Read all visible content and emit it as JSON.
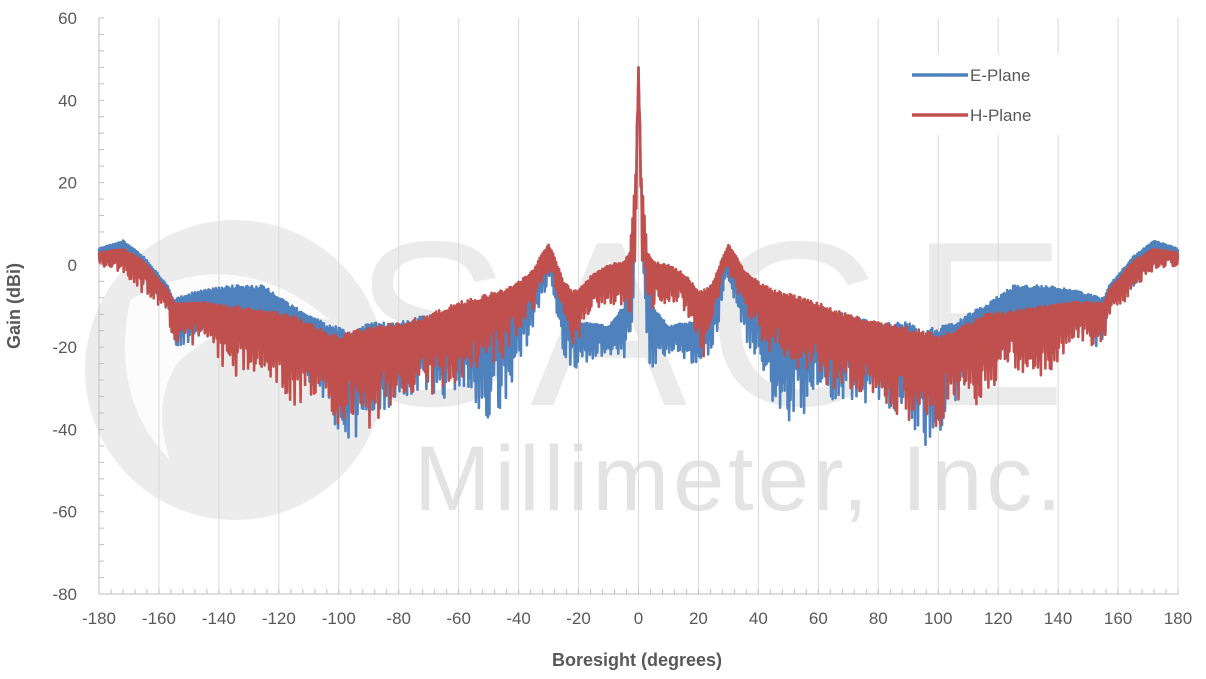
{
  "watermark": {
    "big_text": "SAGE",
    "small_text": "Millimeter, Inc.",
    "color": "#d9d9d9"
  },
  "chart_data": {
    "type": "line",
    "title": "",
    "xlabel": "Boresight (degrees)",
    "ylabel": "Gain (dBi)",
    "xlim": [
      -180,
      180
    ],
    "ylim": [
      -80,
      60
    ],
    "xticks": [
      -180,
      -160,
      -140,
      -120,
      -100,
      -80,
      -60,
      -40,
      -20,
      0,
      20,
      40,
      60,
      80,
      100,
      120,
      140,
      160,
      180
    ],
    "yticks": [
      -80,
      -60,
      -40,
      -20,
      0,
      20,
      40,
      60
    ],
    "grid": "vertical",
    "legend": "top-right",
    "series": [
      {
        "name": "E-Plane",
        "color": "#4f81bd",
        "x": [
          -180,
          -172,
          -165,
          -157,
          -155,
          -145,
          -135,
          -125,
          -115,
          -105,
          -100,
          -95,
          -90,
          -80,
          -70,
          -60,
          -55,
          -50,
          -45,
          -40,
          -35,
          -32,
          -30,
          -28,
          -25,
          -22,
          -20,
          -15,
          -10,
          -5,
          -3,
          -1,
          0,
          1,
          3,
          5,
          10,
          15,
          20,
          22,
          25,
          28,
          30,
          32,
          35,
          40,
          45,
          50,
          55,
          60,
          70,
          80,
          90,
          95,
          100,
          105,
          115,
          125,
          135,
          145,
          155,
          157,
          165,
          172,
          180
        ],
        "y_upper": [
          4,
          6,
          2,
          -5,
          -8,
          -6,
          -5,
          -5,
          -10,
          -14,
          -15,
          -16,
          -14,
          -14,
          -12,
          -11,
          -10,
          -10,
          -9,
          -6,
          -2,
          1,
          3,
          0,
          -8,
          -12,
          -14,
          -14,
          -15,
          -10,
          -2,
          20,
          48,
          20,
          -2,
          -10,
          -15,
          -14,
          -14,
          -12,
          -8,
          0,
          3,
          1,
          -2,
          -6,
          -9,
          -10,
          -10,
          -11,
          -12,
          -14,
          -14,
          -16,
          -15,
          -14,
          -10,
          -5,
          -5,
          -6,
          -8,
          -5,
          2,
          6,
          4
        ],
        "y_lower": [
          0,
          -2,
          -8,
          -12,
          -25,
          -20,
          -25,
          -28,
          -30,
          -40,
          -50,
          -55,
          -45,
          -40,
          -42,
          -38,
          -45,
          -48,
          -42,
          -30,
          -22,
          -12,
          -6,
          -12,
          -26,
          -32,
          -28,
          -26,
          -24,
          -30,
          -32,
          -5,
          48,
          -5,
          -32,
          -30,
          -24,
          -26,
          -28,
          -32,
          -26,
          -12,
          -6,
          -12,
          -22,
          -30,
          -42,
          -48,
          -45,
          -38,
          -42,
          -40,
          -45,
          -55,
          -50,
          -40,
          -30,
          -28,
          -25,
          -20,
          -25,
          -12,
          -8,
          -2,
          0
        ]
      },
      {
        "name": "H-Plane",
        "color": "#c0504d",
        "x": [
          -180,
          -172,
          -165,
          -157,
          -155,
          -145,
          -135,
          -125,
          -115,
          -105,
          -100,
          -95,
          -90,
          -80,
          -70,
          -60,
          -55,
          -50,
          -45,
          -40,
          -35,
          -32,
          -30,
          -28,
          -25,
          -22,
          -20,
          -15,
          -10,
          -5,
          -3,
          -1,
          0,
          1,
          3,
          5,
          10,
          15,
          20,
          22,
          25,
          28,
          30,
          32,
          35,
          40,
          45,
          50,
          55,
          60,
          70,
          80,
          90,
          95,
          100,
          105,
          115,
          125,
          135,
          145,
          155,
          157,
          165,
          172,
          180
        ],
        "y_upper": [
          3,
          4,
          1,
          -6,
          -9,
          -9,
          -10,
          -11,
          -12,
          -16,
          -17,
          -16,
          -15,
          -14,
          -12,
          -9,
          -8,
          -7,
          -6,
          -4,
          -1,
          3,
          5,
          2,
          -4,
          -6,
          -6,
          -2,
          0,
          1,
          3,
          22,
          48,
          22,
          3,
          1,
          0,
          -2,
          -6,
          -6,
          -4,
          2,
          5,
          3,
          -1,
          -4,
          -6,
          -7,
          -8,
          -9,
          -12,
          -14,
          -15,
          -16,
          -17,
          -16,
          -12,
          -11,
          -10,
          -9,
          -9,
          -6,
          1,
          4,
          3
        ],
        "y_lower": [
          -1,
          -4,
          -10,
          -14,
          -24,
          -22,
          -34,
          -30,
          -42,
          -38,
          -48,
          -44,
          -48,
          -38,
          -40,
          -35,
          -32,
          -30,
          -28,
          -22,
          -14,
          -8,
          -4,
          -8,
          -16,
          -30,
          -22,
          -14,
          -12,
          -16,
          -20,
          -5,
          48,
          -5,
          -20,
          -16,
          -12,
          -14,
          -22,
          -30,
          -16,
          -8,
          -4,
          -8,
          -14,
          -22,
          -28,
          -30,
          -32,
          -35,
          -40,
          -38,
          -48,
          -44,
          -48,
          -38,
          -42,
          -30,
          -34,
          -22,
          -24,
          -14,
          -10,
          -4,
          -1
        ]
      }
    ]
  }
}
